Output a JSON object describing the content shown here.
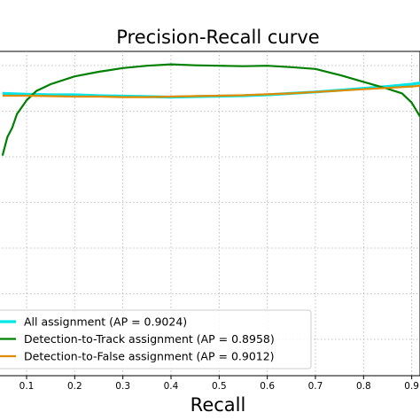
{
  "chart_data": {
    "type": "line",
    "title": "Precision-Recall curve",
    "xlabel": "Recall",
    "ylabel": "",
    "xlim": [
      0.05,
      0.92
    ],
    "ylim": [
      0.0,
      1.0
    ],
    "grid": true,
    "legend_position": "lower-left",
    "x_ticks": [
      "0.1",
      "0.2",
      "0.3",
      "0.4",
      "0.5",
      "0.6",
      "0.7",
      "0.8",
      "0.9"
    ],
    "series": [
      {
        "name": "All assignment (AP = 0.9024)",
        "color": "#00e5e5",
        "x": [
          0.05,
          0.1,
          0.15,
          0.2,
          0.25,
          0.3,
          0.35,
          0.4,
          0.45,
          0.5,
          0.55,
          0.6,
          0.65,
          0.7,
          0.75,
          0.8,
          0.85,
          0.9,
          0.92
        ],
        "y": [
          0.775,
          0.773,
          0.772,
          0.772,
          0.77,
          0.769,
          0.768,
          0.767,
          0.768,
          0.769,
          0.77,
          0.772,
          0.775,
          0.778,
          0.782,
          0.786,
          0.79,
          0.795,
          0.798
        ]
      },
      {
        "name": "Detection-to-Track assignment (AP = 0.8958)",
        "color": "#007f00",
        "x": [
          0.05,
          0.06,
          0.07,
          0.08,
          0.1,
          0.12,
          0.15,
          0.2,
          0.25,
          0.3,
          0.35,
          0.4,
          0.45,
          0.5,
          0.55,
          0.6,
          0.65,
          0.7,
          0.75,
          0.8,
          0.85,
          0.88,
          0.9,
          0.92
        ],
        "y": [
          0.64,
          0.68,
          0.7,
          0.73,
          0.76,
          0.78,
          0.795,
          0.812,
          0.822,
          0.83,
          0.835,
          0.838,
          0.836,
          0.835,
          0.834,
          0.835,
          0.832,
          0.828,
          0.815,
          0.8,
          0.785,
          0.775,
          0.755,
          0.72
        ]
      },
      {
        "name": "Detection-to-False assignment (AP = 0.9012)",
        "color": "#e08a00",
        "x": [
          0.05,
          0.1,
          0.15,
          0.2,
          0.25,
          0.3,
          0.35,
          0.4,
          0.45,
          0.5,
          0.55,
          0.6,
          0.65,
          0.7,
          0.75,
          0.8,
          0.85,
          0.9,
          0.92
        ],
        "y": [
          0.77,
          0.77,
          0.769,
          0.768,
          0.768,
          0.767,
          0.767,
          0.768,
          0.769,
          0.77,
          0.771,
          0.773,
          0.775,
          0.778,
          0.781,
          0.784,
          0.787,
          0.79,
          0.792
        ]
      }
    ]
  }
}
